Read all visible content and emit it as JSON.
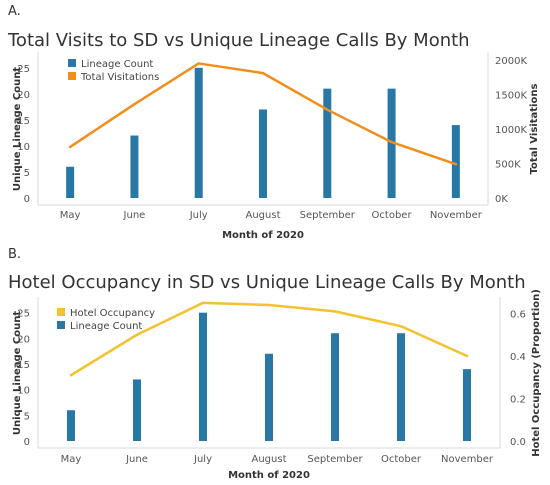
{
  "chart_data": [
    {
      "panel": "A.",
      "type": "bar+line",
      "title": "Total Visits to SD vs Unique Lineage Calls By Month",
      "xlabel": "Month of 2020",
      "ylabel_left": "Unique Lineage Count",
      "ylabel_right": "Total Visitations",
      "categories": [
        "May",
        "June",
        "July",
        "August",
        "September",
        "October",
        "November"
      ],
      "left_ticks": [
        "0",
        "5",
        "10",
        "15",
        "20",
        "25"
      ],
      "right_ticks": [
        "0K",
        "500K",
        "1000K",
        "1500K",
        "2000K"
      ],
      "ylim_left": [
        0,
        26.5
      ],
      "ylim_right": [
        0,
        2000000
      ],
      "legend": [
        "Lineage Count",
        "Total Visitations"
      ],
      "legend_placement": "top-left",
      "series": [
        {
          "name": "Lineage Count",
          "type": "bar",
          "axis": "left",
          "color": "#2878a6",
          "values": [
            6,
            12,
            25,
            17,
            21,
            21,
            14
          ]
        },
        {
          "name": "Total Visitations",
          "type": "line",
          "axis": "right",
          "color": "#f28e1c",
          "values": [
            740000,
            1360000,
            1950000,
            1810000,
            1280000,
            810000,
            490000
          ]
        }
      ]
    },
    {
      "panel": "B.",
      "type": "bar+line",
      "title": "Hotel Occupancy in SD vs Unique Lineage Calls By Month",
      "xlabel": "Month of 2020",
      "ylabel_left": "Unique Lineage Count",
      "ylabel_right": "Hotel Occupancy (Proportion)",
      "categories": [
        "May",
        "June",
        "July",
        "August",
        "September",
        "October",
        "November"
      ],
      "left_ticks": [
        "0",
        "5",
        "10",
        "15",
        "20",
        "25"
      ],
      "right_ticks": [
        "0.0",
        "0.2",
        "0.4",
        "0.6"
      ],
      "ylim_left": [
        0,
        26.5
      ],
      "ylim_right": [
        0,
        0.64
      ],
      "legend": [
        "Hotel Occupancy",
        "Lineage Count"
      ],
      "legend_placement": "top-left",
      "series": [
        {
          "name": "Lineage Count",
          "type": "bar",
          "axis": "left",
          "color": "#2878a6",
          "values": [
            6,
            12,
            25,
            17,
            21,
            21,
            14
          ]
        },
        {
          "name": "Hotel Occupancy",
          "type": "line",
          "axis": "right",
          "color": "#f3c230",
          "values": [
            0.31,
            0.5,
            0.65,
            0.64,
            0.61,
            0.54,
            0.4
          ]
        }
      ]
    }
  ]
}
